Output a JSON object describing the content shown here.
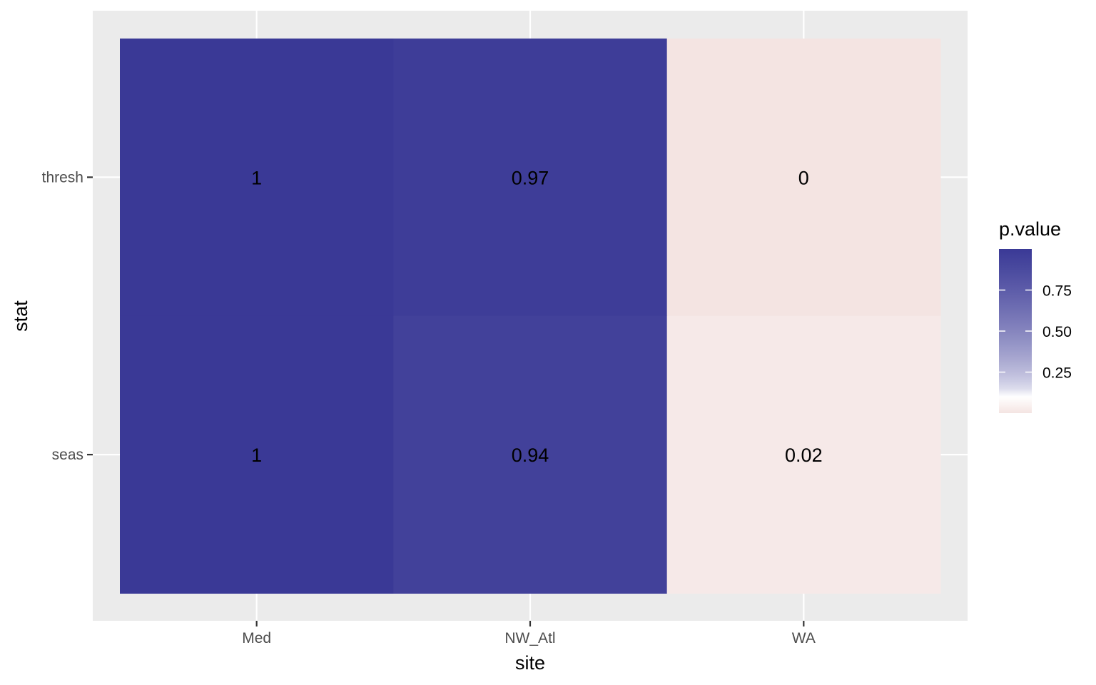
{
  "chart_data": {
    "type": "heatmap",
    "title": "",
    "xlabel": "site",
    "ylabel": "stat",
    "x_categories": [
      "Med",
      "NW_Atl",
      "WA"
    ],
    "y_categories": [
      "seas",
      "thresh"
    ],
    "cells": [
      {
        "x": "Med",
        "y": "thresh",
        "value": 1,
        "label": "1"
      },
      {
        "x": "NW_Atl",
        "y": "thresh",
        "value": 0.97,
        "label": "0.97"
      },
      {
        "x": "WA",
        "y": "thresh",
        "value": 0,
        "label": "0"
      },
      {
        "x": "Med",
        "y": "seas",
        "value": 1,
        "label": "1"
      },
      {
        "x": "NW_Atl",
        "y": "seas",
        "value": 0.94,
        "label": "0.94"
      },
      {
        "x": "WA",
        "y": "seas",
        "value": 0.02,
        "label": "0.02"
      }
    ],
    "legend": {
      "title": "p.value",
      "position": "right",
      "breaks": [
        0.25,
        0.5,
        0.75
      ],
      "break_labels": [
        "0.25",
        "0.50",
        "0.75"
      ],
      "range": [
        0,
        1
      ]
    },
    "colors": {
      "low": "#f4e4e2",
      "mid": "#ffffff",
      "high": "#3a3996",
      "panel_background": "#ebebeb",
      "grid": "#ffffff"
    },
    "grid": true
  }
}
